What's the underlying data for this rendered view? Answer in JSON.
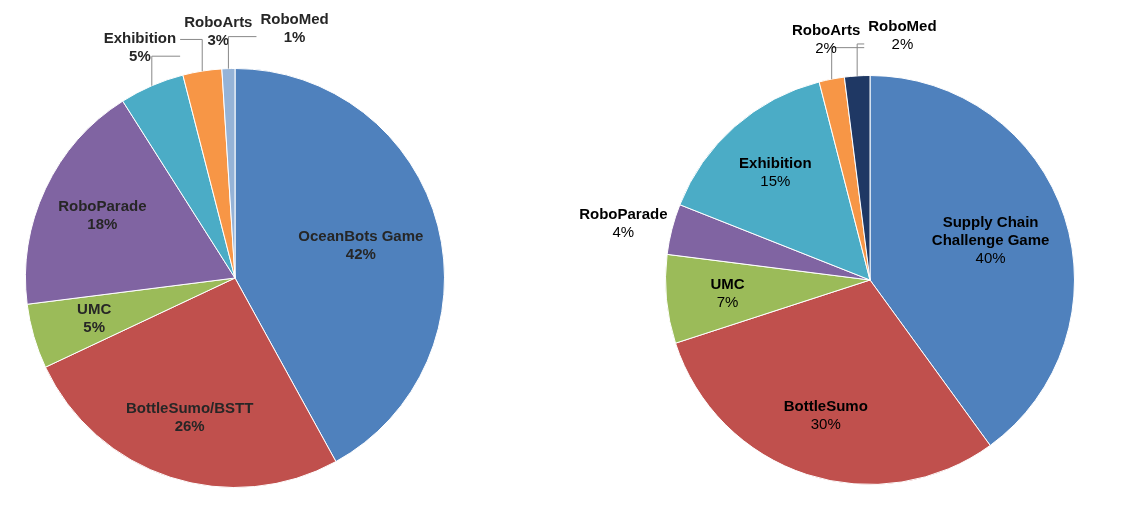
{
  "chart_data": [
    {
      "type": "pie",
      "categories": [
        "OceanBots Game",
        "BottleSumo/BSTT",
        "UMC",
        "RoboParade",
        "Exhibition",
        "RoboArts",
        "RoboMed"
      ],
      "values": [
        42,
        26,
        5,
        18,
        5,
        3,
        1
      ],
      "value_labels": [
        "42%",
        "26%",
        "5%",
        "18%",
        "5%",
        "3%",
        "1%"
      ],
      "colors": [
        "#4f81bd",
        "#c0504d",
        "#9bbb59",
        "#8064a2",
        "#4bacc6",
        "#f79646",
        "#95b3d7"
      ]
    },
    {
      "type": "pie",
      "categories": [
        "Supply Chain Challenge Game",
        "BottleSumo",
        "UMC",
        "RoboParade",
        "Exhibition",
        "RoboArts",
        "RoboMed"
      ],
      "values": [
        40,
        30,
        7,
        4,
        15,
        2,
        2
      ],
      "value_labels": [
        "40%",
        "30%",
        "7%",
        "4%",
        "15%",
        "2%",
        "2%"
      ],
      "colors": [
        "#4f81bd",
        "#c0504d",
        "#9bbb59",
        "#8064a2",
        "#4bacc6",
        "#f79646",
        "#1f3864"
      ]
    }
  ]
}
